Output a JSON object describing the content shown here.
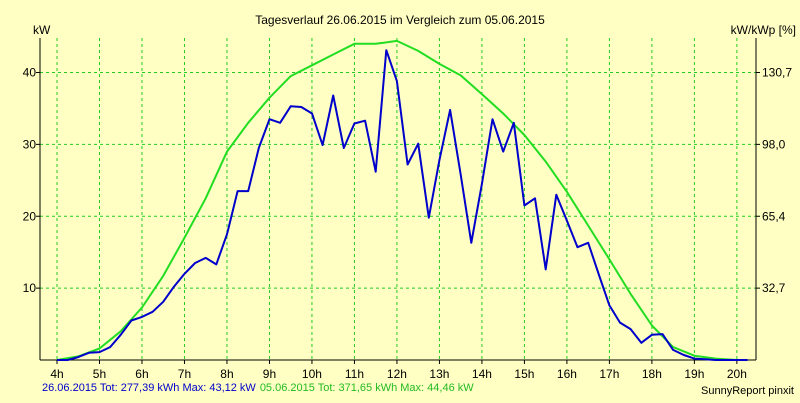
{
  "chart_data": {
    "type": "line",
    "title": "Tagesverlauf 26.06.2015 im Vergleich zum 05.06.2015",
    "ylabel_left": "kW",
    "ylabel_right": "kW/kWp [%]",
    "x_ticks": [
      "4h",
      "5h",
      "6h",
      "7h",
      "8h",
      "9h",
      "10h",
      "11h",
      "12h",
      "13h",
      "14h",
      "15h",
      "16h",
      "17h",
      "18h",
      "19h",
      "20h"
    ],
    "x_range": [
      3.6,
      20.45
    ],
    "ylim": [
      0,
      44.8
    ],
    "y_ticks": [
      10,
      20,
      30,
      40
    ],
    "y_ticks_right": [
      "32,7",
      "65,4",
      "98,0",
      "130,7"
    ],
    "y_ticks_right_at": [
      10,
      20,
      30,
      40
    ],
    "grid": true,
    "series": [
      {
        "name": "26.06.2015",
        "color": "#0000cc",
        "x": [
          4.0,
          4.25,
          4.5,
          4.75,
          5.0,
          5.25,
          5.5,
          5.75,
          6.0,
          6.25,
          6.5,
          6.75,
          7.0,
          7.25,
          7.5,
          7.75,
          8.0,
          8.25,
          8.5,
          8.75,
          9.0,
          9.25,
          9.5,
          9.75,
          10.0,
          10.25,
          10.5,
          10.75,
          11.0,
          11.25,
          11.5,
          11.75,
          12.0,
          12.25,
          12.5,
          12.75,
          13.0,
          13.25,
          13.5,
          13.75,
          14.0,
          14.25,
          14.5,
          14.75,
          15.0,
          15.25,
          15.5,
          15.75,
          16.0,
          16.25,
          16.5,
          16.75,
          17.0,
          17.25,
          17.5,
          17.75,
          18.0,
          18.25,
          18.5,
          18.75,
          19.0,
          19.25,
          19.5,
          19.75,
          20.0,
          20.25
        ],
        "values": [
          0,
          0,
          0.4,
          1.0,
          1.1,
          1.8,
          3.5,
          5.5,
          6.0,
          6.7,
          8.1,
          10.2,
          12.0,
          13.5,
          14.2,
          13.3,
          17.5,
          23.5,
          23.5,
          29.5,
          33.5,
          33.0,
          35.3,
          35.2,
          34.3,
          29.9,
          36.8,
          29.5,
          32.9,
          33.3,
          26.2,
          43.1,
          38.8,
          27.2,
          30.1,
          19.8,
          27.8,
          34.8,
          25.8,
          16.3,
          24.5,
          33.5,
          29.0,
          33.0,
          21.5,
          22.5,
          12.6,
          23.0,
          19.4,
          15.7,
          16.3,
          11.9,
          7.6,
          5.2,
          4.3,
          2.4,
          3.5,
          3.6,
          1.4,
          0.7,
          0.2,
          0.1,
          0,
          0,
          0,
          0
        ]
      },
      {
        "name": "05.06.2015",
        "color": "#22dd22",
        "x": [
          4.0,
          4.5,
          5.0,
          5.5,
          6.0,
          6.5,
          7.0,
          7.5,
          8.0,
          8.5,
          9.0,
          9.5,
          10.0,
          10.5,
          11.0,
          11.5,
          12.0,
          12.5,
          13.0,
          13.5,
          14.0,
          14.5,
          15.0,
          15.5,
          16.0,
          16.5,
          17.0,
          17.5,
          18.0,
          18.5,
          19.0,
          19.5,
          20.0,
          20.25
        ],
        "values": [
          0,
          0.5,
          1.6,
          4.0,
          7.3,
          11.7,
          17.0,
          22.5,
          29.0,
          33.0,
          36.5,
          39.5,
          41.0,
          42.5,
          44.0,
          44.0,
          44.4,
          43.0,
          41.2,
          39.6,
          37.0,
          34.3,
          31.3,
          27.6,
          23.4,
          18.7,
          14.0,
          9.2,
          4.8,
          1.8,
          0.6,
          0.2,
          0,
          0
        ]
      }
    ]
  },
  "legend": {
    "s1": "26.06.2015 Tot: 277,39 kWh Max: 43,12 kW",
    "s2": "05.06.2015 Tot: 371,65 kWh Max: 44,46 kW"
  },
  "brand": "SunnyReport pinxit"
}
